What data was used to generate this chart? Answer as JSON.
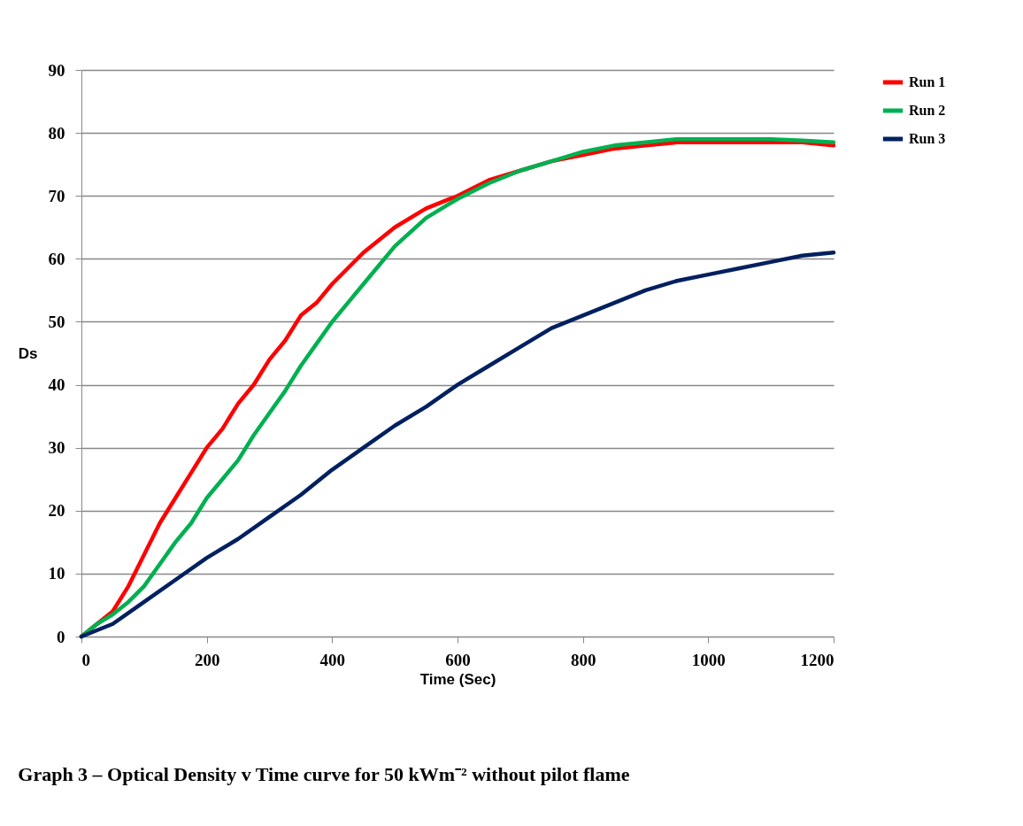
{
  "chart_data": {
    "type": "line",
    "title": "Graph 3 – Optical Density v Time curve for 50 kWm⁻² without pilot flame",
    "xlabel": "Time (Sec)",
    "ylabel": "Ds",
    "xlim": [
      0,
      1200
    ],
    "xticks": [
      0,
      200,
      400,
      600,
      800,
      1000,
      1200
    ],
    "ylim": [
      0,
      90
    ],
    "yticks": [
      0,
      10,
      20,
      30,
      40,
      50,
      60,
      70,
      80,
      90
    ],
    "grid": "y",
    "legend": "right",
    "line_style": "solid",
    "marker": "none",
    "series": [
      {
        "name": "Run 1",
        "color": "#ff0000",
        "x": [
          0,
          25,
          50,
          75,
          100,
          125,
          150,
          175,
          200,
          225,
          250,
          275,
          300,
          325,
          350,
          375,
          400,
          425,
          450,
          475,
          500,
          550,
          600,
          650,
          700,
          750,
          800,
          850,
          900,
          950,
          1000,
          1050,
          1100,
          1150,
          1200
        ],
        "values": [
          0,
          2,
          4,
          8,
          13,
          18,
          22,
          26,
          30,
          33,
          37,
          40,
          44,
          47,
          51,
          53,
          56,
          58.5,
          61,
          63,
          65,
          68,
          70,
          72.5,
          74,
          75.5,
          76.5,
          77.5,
          78,
          78.5,
          78.5,
          78.5,
          78.5,
          78.5,
          78
        ]
      },
      {
        "name": "Run 2",
        "color": "#00b050",
        "x": [
          0,
          25,
          50,
          75,
          100,
          125,
          150,
          175,
          200,
          225,
          250,
          275,
          300,
          325,
          350,
          375,
          400,
          425,
          450,
          475,
          500,
          550,
          600,
          650,
          700,
          750,
          800,
          850,
          900,
          950,
          1000,
          1050,
          1100,
          1150,
          1200
        ],
        "values": [
          0,
          2,
          3.5,
          5.5,
          8,
          11.5,
          15,
          18,
          22,
          25,
          28,
          32,
          35.5,
          39,
          43,
          46.5,
          50,
          53,
          56,
          59,
          62,
          66.5,
          69.5,
          72,
          74,
          75.5,
          77,
          78,
          78.5,
          79,
          79,
          79,
          79,
          78.8,
          78.5
        ]
      },
      {
        "name": "Run 3",
        "color": "#002060",
        "x": [
          0,
          50,
          100,
          150,
          200,
          250,
          300,
          350,
          400,
          450,
          500,
          550,
          600,
          650,
          700,
          750,
          800,
          850,
          900,
          950,
          1000,
          1050,
          1100,
          1150,
          1200
        ],
        "values": [
          0,
          2,
          5.5,
          9,
          12.5,
          15.5,
          19,
          22.5,
          26.5,
          30,
          33.5,
          36.5,
          40,
          43,
          46,
          49,
          51,
          53,
          55,
          56.5,
          57.5,
          58.5,
          59.5,
          60.5,
          61
        ]
      }
    ]
  }
}
